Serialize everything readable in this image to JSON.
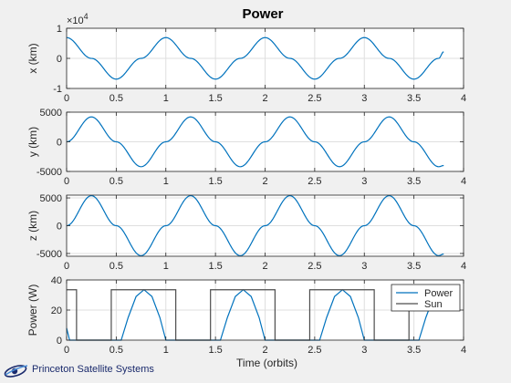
{
  "figure_title": "Power",
  "logo_text": "Princeton Satellite Systems",
  "colors": {
    "figure_bg": "#f0f0f0",
    "axes_bg": "#ffffff",
    "series_blue": "#0072bd",
    "sun_gray": "#4d4d4d",
    "grid": "#dfdfdf",
    "axis": "#262626",
    "logo": "#1a2a6c"
  },
  "chart_data": [
    {
      "type": "line",
      "ylabel": "x (km)",
      "xlabel": "",
      "xlim": [
        0,
        4
      ],
      "ylim": [
        -1,
        1
      ],
      "y_exponent": "4",
      "xticks": [
        "0",
        "0.5",
        "1",
        "1.5",
        "2",
        "2.5",
        "3",
        "3.5",
        "4"
      ],
      "yticks": [
        -1,
        0,
        1
      ],
      "ytick_labels": [
        "-1",
        "0",
        "1"
      ],
      "grid": true,
      "series": [
        {
          "color": "#0072bd",
          "x": [
            0,
            0.25,
            0.5,
            0.75,
            1,
            1.25,
            1.5,
            1.75,
            2,
            2.25,
            2.5,
            2.75,
            3,
            3.25,
            3.5,
            3.75,
            3.8
          ],
          "y": [
            0.69,
            0,
            -0.69,
            0,
            0.69,
            0,
            -0.69,
            0,
            0.69,
            0,
            -0.69,
            0,
            0.69,
            0,
            -0.69,
            0,
            0.22
          ]
        }
      ]
    },
    {
      "type": "line",
      "ylabel": "y (km)",
      "xlabel": "",
      "xlim": [
        0,
        4
      ],
      "ylim": [
        -5000,
        5000
      ],
      "xticks": [
        "0",
        "0.5",
        "1",
        "1.5",
        "2",
        "2.5",
        "3",
        "3.5",
        "4"
      ],
      "yticks": [
        -5000,
        0,
        5000
      ],
      "ytick_labels": [
        "-5000",
        "0",
        "5000"
      ],
      "grid": true,
      "series": [
        {
          "color": "#0072bd",
          "x": [
            0,
            0.25,
            0.5,
            0.75,
            1,
            1.25,
            1.5,
            1.75,
            2,
            2.25,
            2.5,
            2.75,
            3,
            3.25,
            3.5,
            3.75,
            3.8
          ],
          "y": [
            0,
            4200,
            0,
            -4200,
            0,
            4200,
            0,
            -4200,
            0,
            4200,
            0,
            -4200,
            0,
            4200,
            0,
            -4200,
            -4000
          ]
        }
      ]
    },
    {
      "type": "line",
      "ylabel": "z (km)",
      "xlabel": "",
      "xlim": [
        0,
        4
      ],
      "ylim": [
        -5500,
        5500
      ],
      "xticks": [
        "0",
        "0.5",
        "1",
        "1.5",
        "2",
        "2.5",
        "3",
        "3.5",
        "4"
      ],
      "yticks": [
        -5000,
        0,
        5000
      ],
      "ytick_labels": [
        "-5000",
        "0",
        "5000"
      ],
      "grid": true,
      "series": [
        {
          "color": "#0072bd",
          "x": [
            0,
            0.25,
            0.5,
            0.75,
            1,
            1.25,
            1.5,
            1.75,
            2,
            2.25,
            2.5,
            2.75,
            3,
            3.25,
            3.5,
            3.75,
            3.8
          ],
          "y": [
            0,
            5400,
            0,
            -5400,
            0,
            5400,
            0,
            -5400,
            0,
            5400,
            0,
            -5400,
            0,
            5400,
            0,
            -5400,
            -5100
          ]
        }
      ]
    },
    {
      "type": "line",
      "ylabel": "Power (W)",
      "xlabel": "Time (orbits)",
      "xlim": [
        0,
        4
      ],
      "ylim": [
        0,
        40
      ],
      "xticks": [
        "0",
        "0.5",
        "1",
        "1.5",
        "2",
        "2.5",
        "3",
        "3.5",
        "4"
      ],
      "yticks": [
        0,
        20,
        40
      ],
      "ytick_labels": [
        "0",
        "20",
        "40"
      ],
      "grid": true,
      "legend": {
        "position": "top-right",
        "entries": [
          "Power",
          "Sun"
        ]
      },
      "series": [
        {
          "name": "Power",
          "color": "#0072bd",
          "x": [
            0,
            0.03,
            0.05,
            0.55,
            0.62,
            0.7,
            0.78,
            0.86,
            0.94,
            1.0,
            1.02,
            1.55,
            1.62,
            1.7,
            1.78,
            1.86,
            1.94,
            2.0,
            2.02,
            2.55,
            2.62,
            2.7,
            2.78,
            2.86,
            2.94,
            3.0,
            3.02,
            3.55,
            3.62,
            3.7,
            3.78,
            3.8
          ],
          "y": [
            8,
            0,
            0,
            0,
            15,
            29,
            33.5,
            29,
            15,
            0,
            0,
            0,
            15,
            29,
            33.5,
            29,
            15,
            0,
            0,
            0,
            15,
            29,
            33.5,
            29,
            15,
            0,
            0,
            0,
            15,
            29,
            33.5,
            33.5
          ]
        },
        {
          "name": "Sun",
          "color": "#4d4d4d",
          "x": [
            0,
            0.1,
            0.1,
            0.45,
            0.45,
            1.1,
            1.1,
            1.45,
            1.45,
            2.1,
            2.1,
            2.45,
            2.45,
            3.1,
            3.1,
            3.45,
            3.45,
            3.8
          ],
          "y": [
            33.5,
            33.5,
            0,
            0,
            33.5,
            33.5,
            0,
            0,
            33.5,
            33.5,
            0,
            0,
            33.5,
            33.5,
            0,
            0,
            33.5,
            33.5
          ]
        }
      ]
    }
  ]
}
